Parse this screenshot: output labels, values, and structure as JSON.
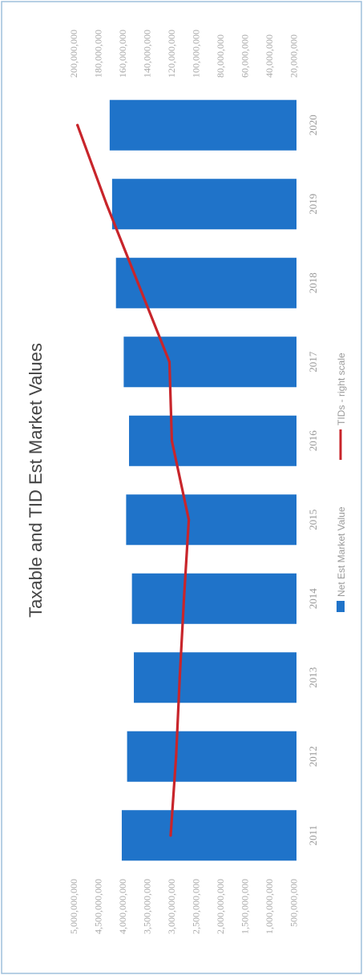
{
  "chart_data": {
    "type": "bar",
    "title": "Taxable and TID Est Market Values",
    "categories": [
      "2011",
      "2012",
      "2013",
      "2014",
      "2015",
      "2016",
      "2017",
      "2018",
      "2019",
      "2020"
    ],
    "series": [
      {
        "name": "Net Est Market Value",
        "type": "bar",
        "axis": "left",
        "color": "#1f73c9",
        "values": [
          3610000000,
          3500000000,
          3360000000,
          3400000000,
          3520000000,
          3460000000,
          3570000000,
          3730000000,
          3810000000,
          3860000000
        ]
      },
      {
        "name": "TIDs - right scale",
        "type": "line",
        "axis": "right",
        "color": "#c8252b",
        "values": [
          104000000,
          99500000,
          96500000,
          93000000,
          89000000,
          103000000,
          105000000,
          131000000,
          157000000,
          181000000
        ]
      }
    ],
    "left_axis": {
      "ylim": [
        0,
        5000000000
      ],
      "ticks": [
        "5,000,000,000",
        "4,500,000,000",
        "4,000,000,000",
        "3,500,000,000",
        "3,000,000,000",
        "2,500,000,000",
        "2,000,000,000",
        "1,500,000,000",
        "1,000,000,000",
        "500,000,000"
      ]
    },
    "right_axis": {
      "ylim": [
        0,
        200000000
      ],
      "ticks": [
        "200,000,000",
        "180,000,000",
        "160,000,000",
        "140,000,000",
        "120,000,000",
        "100,000,000",
        "80,000,000",
        "60,000,000",
        "40,000,000",
        "20,000,000"
      ]
    },
    "legend_position": "bottom",
    "grid": false
  }
}
